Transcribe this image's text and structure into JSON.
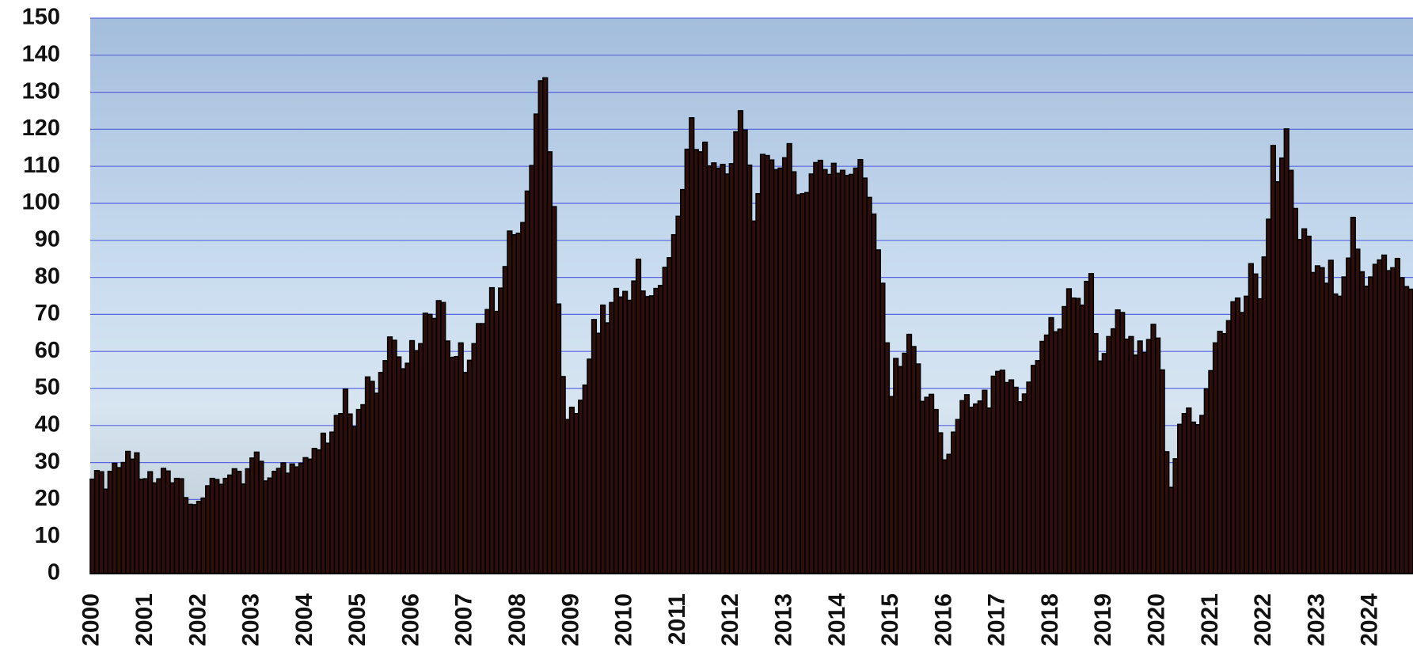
{
  "chart_data": {
    "type": "bar",
    "categories": [
      "2000",
      null,
      null,
      null,
      null,
      null,
      null,
      null,
      null,
      null,
      null,
      null,
      "2001",
      null,
      null,
      null,
      null,
      null,
      null,
      null,
      null,
      null,
      null,
      null,
      "2002",
      null,
      null,
      null,
      null,
      null,
      null,
      null,
      null,
      null,
      null,
      null,
      "2003",
      null,
      null,
      null,
      null,
      null,
      null,
      null,
      null,
      null,
      null,
      null,
      "2004",
      null,
      null,
      null,
      null,
      null,
      null,
      null,
      null,
      null,
      null,
      null,
      "2005",
      null,
      null,
      null,
      null,
      null,
      null,
      null,
      null,
      null,
      null,
      null,
      "2006",
      null,
      null,
      null,
      null,
      null,
      null,
      null,
      null,
      null,
      null,
      null,
      "2007",
      null,
      null,
      null,
      null,
      null,
      null,
      null,
      null,
      null,
      null,
      null,
      "2008",
      null,
      null,
      null,
      null,
      null,
      null,
      null,
      null,
      null,
      null,
      null,
      "2009",
      null,
      null,
      null,
      null,
      null,
      null,
      null,
      null,
      null,
      null,
      null,
      "2010",
      null,
      null,
      null,
      null,
      null,
      null,
      null,
      null,
      null,
      null,
      null,
      "2011",
      null,
      null,
      null,
      null,
      null,
      null,
      null,
      null,
      null,
      null,
      null,
      "2012",
      null,
      null,
      null,
      null,
      null,
      null,
      null,
      null,
      null,
      null,
      null,
      "2013",
      null,
      null,
      null,
      null,
      null,
      null,
      null,
      null,
      null,
      null,
      null,
      "2014",
      null,
      null,
      null,
      null,
      null,
      null,
      null,
      null,
      null,
      null,
      null,
      "2015",
      null,
      null,
      null,
      null,
      null,
      null,
      null,
      null,
      null,
      null,
      null,
      "2016",
      null,
      null,
      null,
      null,
      null,
      null,
      null,
      null,
      null,
      null,
      null,
      "2017",
      null,
      null,
      null,
      null,
      null,
      null,
      null,
      null,
      null,
      null,
      null,
      "2018",
      null,
      null,
      null,
      null,
      null,
      null,
      null,
      null,
      null,
      null,
      null,
      "2019",
      null,
      null,
      null,
      null,
      null,
      null,
      null,
      null,
      null,
      null,
      null,
      "2020",
      null,
      null,
      null,
      null,
      null,
      null,
      null,
      null,
      null,
      null,
      null,
      "2021",
      null,
      null,
      null,
      null,
      null,
      null,
      null,
      null,
      null,
      null,
      null,
      "2022",
      null,
      null,
      null,
      null,
      null,
      null,
      null,
      null,
      null,
      null,
      null,
      "2023",
      null,
      null,
      null,
      null,
      null,
      null,
      null,
      null,
      null,
      null,
      null,
      "2024",
      null,
      null,
      null,
      null,
      null,
      null,
      null,
      null,
      null
    ],
    "values": [
      25.5,
      27.8,
      27.5,
      22.8,
      27.6,
      29.8,
      28.6,
      30.0,
      33.0,
      30.9,
      32.6,
      25.5,
      25.6,
      27.5,
      24.5,
      25.6,
      28.4,
      27.7,
      24.5,
      25.7,
      25.6,
      20.5,
      18.7,
      18.6,
      19.5,
      20.4,
      23.7,
      25.7,
      25.4,
      24.1,
      25.7,
      26.6,
      28.3,
      27.6,
      24.2,
      28.3,
      31.2,
      32.8,
      30.3,
      25.0,
      25.8,
      27.6,
      28.4,
      29.9,
      27.1,
      29.6,
      28.8,
      29.8,
      31.3,
      30.9,
      33.8,
      33.4,
      37.9,
      35.2,
      38.2,
      42.7,
      43.2,
      49.8,
      43.1,
      39.7,
      44.3,
      45.6,
      53.1,
      51.9,
      48.7,
      54.3,
      57.5,
      63.9,
      63.0,
      58.5,
      55.3,
      56.8,
      62.9,
      60.2,
      62.1,
      70.3,
      70.0,
      68.9,
      73.7,
      73.2,
      62.8,
      58.4,
      58.6,
      62.3,
      54.3,
      57.6,
      62.1,
      67.5,
      67.5,
      71.3,
      77.2,
      70.8,
      77.1,
      82.9,
      92.5,
      91.5,
      91.9,
      94.8,
      103.3,
      110.2,
      124.1,
      133.1,
      133.9,
      113.9,
      99.1,
      72.8,
      53.2,
      41.6,
      44.9,
      43.2,
      46.8,
      50.9,
      57.9,
      68.6,
      64.9,
      72.5,
      67.7,
      73.2,
      77.0,
      74.7,
      76.2,
      73.8,
      79.0,
      84.9,
      76.3,
      74.8,
      75.0,
      77.0,
      77.8,
      82.7,
      85.3,
      91.5,
      96.5,
      103.7,
      114.6,
      123.1,
      114.5,
      113.9,
      116.5,
      110.1,
      110.9,
      109.5,
      110.5,
      107.9,
      110.7,
      119.3,
      125.0,
      119.8,
      110.3,
      95.2,
      102.6,
      113.2,
      112.9,
      111.7,
      109.1,
      109.5,
      112.3,
      116.1,
      108.5,
      102.3,
      102.6,
      102.9,
      107.9,
      111.0,
      111.6,
      109.1,
      107.8,
      110.8,
      108.1,
      108.9,
      107.5,
      107.8,
      109.5,
      111.8,
      106.8,
      101.6,
      97.1,
      87.4,
      78.4,
      62.3,
      47.8,
      58.1,
      55.9,
      59.5,
      64.6,
      61.3,
      56.6,
      46.5,
      47.6,
      48.4,
      44.3,
      38.0,
      30.7,
      32.2,
      38.2,
      41.6,
      46.7,
      48.3,
      44.9,
      45.8,
      46.6,
      49.5,
      44.7,
      53.3,
      54.6,
      54.9,
      51.6,
      52.3,
      50.3,
      46.4,
      48.5,
      51.7,
      56.2,
      57.5,
      62.7,
      64.4,
      69.1,
      65.3,
      66.0,
      72.1,
      76.9,
      74.4,
      74.3,
      72.5,
      78.9,
      81.0,
      64.8,
      57.4,
      59.4,
      64.0,
      66.1,
      71.2,
      70.5,
      63.3,
      64.0,
      59.0,
      62.8,
      59.7,
      63.2,
      67.3,
      63.6,
      55.0,
      32.9,
      23.3,
      31.0,
      40.3,
      43.2,
      44.7,
      40.9,
      40.2,
      42.7,
      49.9,
      54.8,
      62.3,
      65.4,
      64.8,
      68.3,
      73.4,
      74.4,
      70.5,
      74.9,
      83.7,
      80.9,
      74.2,
      85.5,
      95.7,
      115.6,
      105.8,
      112.2,
      120.1,
      108.9,
      98.6,
      90.2,
      93.1,
      91.1,
      81.3,
      83.1,
      82.6,
      78.4,
      84.6,
      75.5,
      74.9,
      80.1,
      85.2,
      96.2,
      87.6,
      81.5,
      77.6,
      80.1,
      83.5,
      84.7,
      86.0,
      81.8,
      82.6,
      85.1,
      79.9,
      77.5,
      76.8
    ],
    "color": "#2e0f0b",
    "ylim": [
      0,
      150
    ],
    "yticks": [
      0,
      10,
      20,
      30,
      40,
      50,
      60,
      70,
      80,
      90,
      100,
      110,
      120,
      130,
      140,
      150
    ],
    "grid": true
  }
}
